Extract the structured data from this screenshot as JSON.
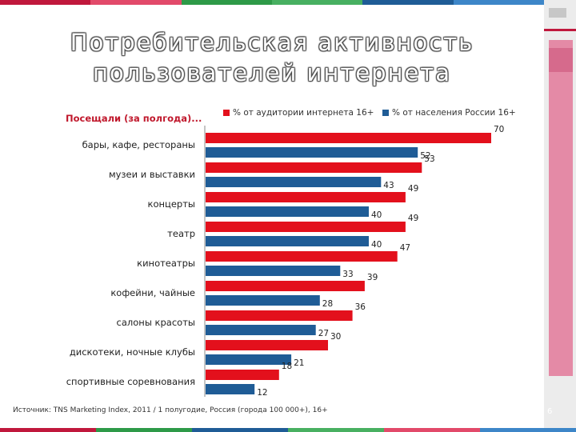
{
  "slide": {
    "title_line1": "Потребительская активность",
    "title_line2": "пользователей интернета",
    "page_number": "6"
  },
  "colors": {
    "series_red": "#e3101c",
    "series_blue": "#1f5c96",
    "subtitle": "#c0182c"
  },
  "chart_data": {
    "type": "bar",
    "orientation": "horizontal",
    "title": "Посещали (за полгода)...",
    "categories": [
      "бары, кафе, рестораны",
      "музеи и выставки",
      "концерты",
      "театр",
      "кинотеатры",
      "кофейни, чайные",
      "салоны красоты",
      "дискотеки, ночные клубы",
      "спортивные соревнования"
    ],
    "series": [
      {
        "name": "% от аудитории интернета 16+",
        "values": [
          70,
          53,
          49,
          49,
          47,
          39,
          36,
          30,
          18
        ]
      },
      {
        "name": "% от населения России 16+",
        "values": [
          52,
          43,
          40,
          40,
          33,
          28,
          27,
          21,
          12
        ]
      }
    ],
    "xlim": [
      0,
      70
    ],
    "legend": "top",
    "grid": false
  },
  "source": "Источник: TNS Marketing Index, 2011 / 1 полугодие, Россия (города 100 000+), 16+"
}
